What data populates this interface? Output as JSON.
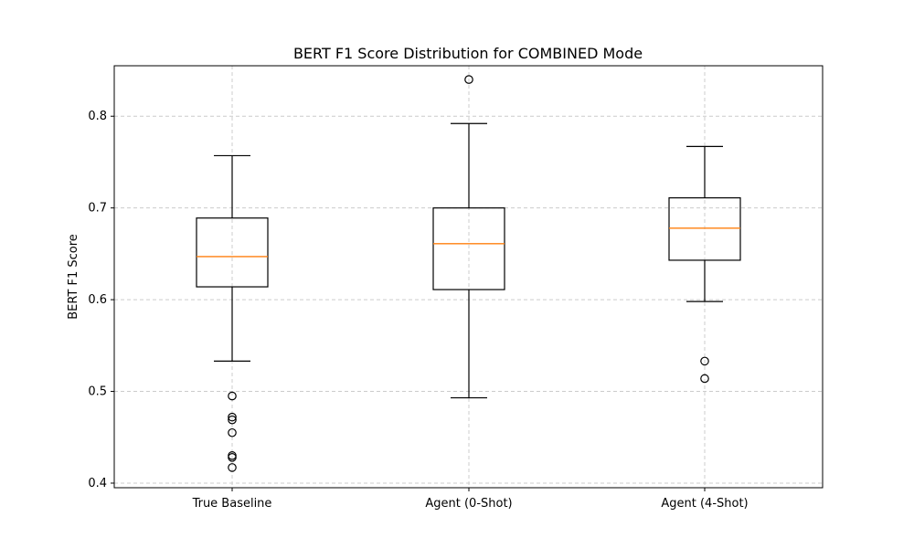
{
  "chart_data": {
    "type": "box",
    "title": "BERT F1 Score Distribution for COMBINED Mode",
    "xlabel": "",
    "ylabel": "BERT F1 Score",
    "ylim": [
      0.395,
      0.855
    ],
    "yticks": [
      0.4,
      0.5,
      0.6,
      0.7,
      0.8
    ],
    "ytick_labels": [
      "0.4",
      "0.5",
      "0.6",
      "0.7",
      "0.8"
    ],
    "grid": true,
    "categories": [
      "True Baseline",
      "Agent (0-Shot)",
      "Agent (4-Shot)"
    ],
    "boxes": [
      {
        "category": "True Baseline",
        "whisker_low": 0.533,
        "q1": 0.614,
        "median": 0.647,
        "q3": 0.689,
        "whisker_high": 0.757,
        "fliers": [
          0.495,
          0.472,
          0.469,
          0.455,
          0.43,
          0.428,
          0.417
        ]
      },
      {
        "category": "Agent (0-Shot)",
        "whisker_low": 0.493,
        "q1": 0.611,
        "median": 0.661,
        "q3": 0.7,
        "whisker_high": 0.792,
        "fliers": [
          0.84
        ]
      },
      {
        "category": "Agent (4-Shot)",
        "whisker_low": 0.598,
        "q1": 0.643,
        "median": 0.678,
        "q3": 0.711,
        "whisker_high": 0.767,
        "fliers": [
          0.533,
          0.514
        ]
      }
    ],
    "colors": {
      "median": "#ff7f0e",
      "box": "#000000",
      "grid": "#cccccc"
    }
  }
}
